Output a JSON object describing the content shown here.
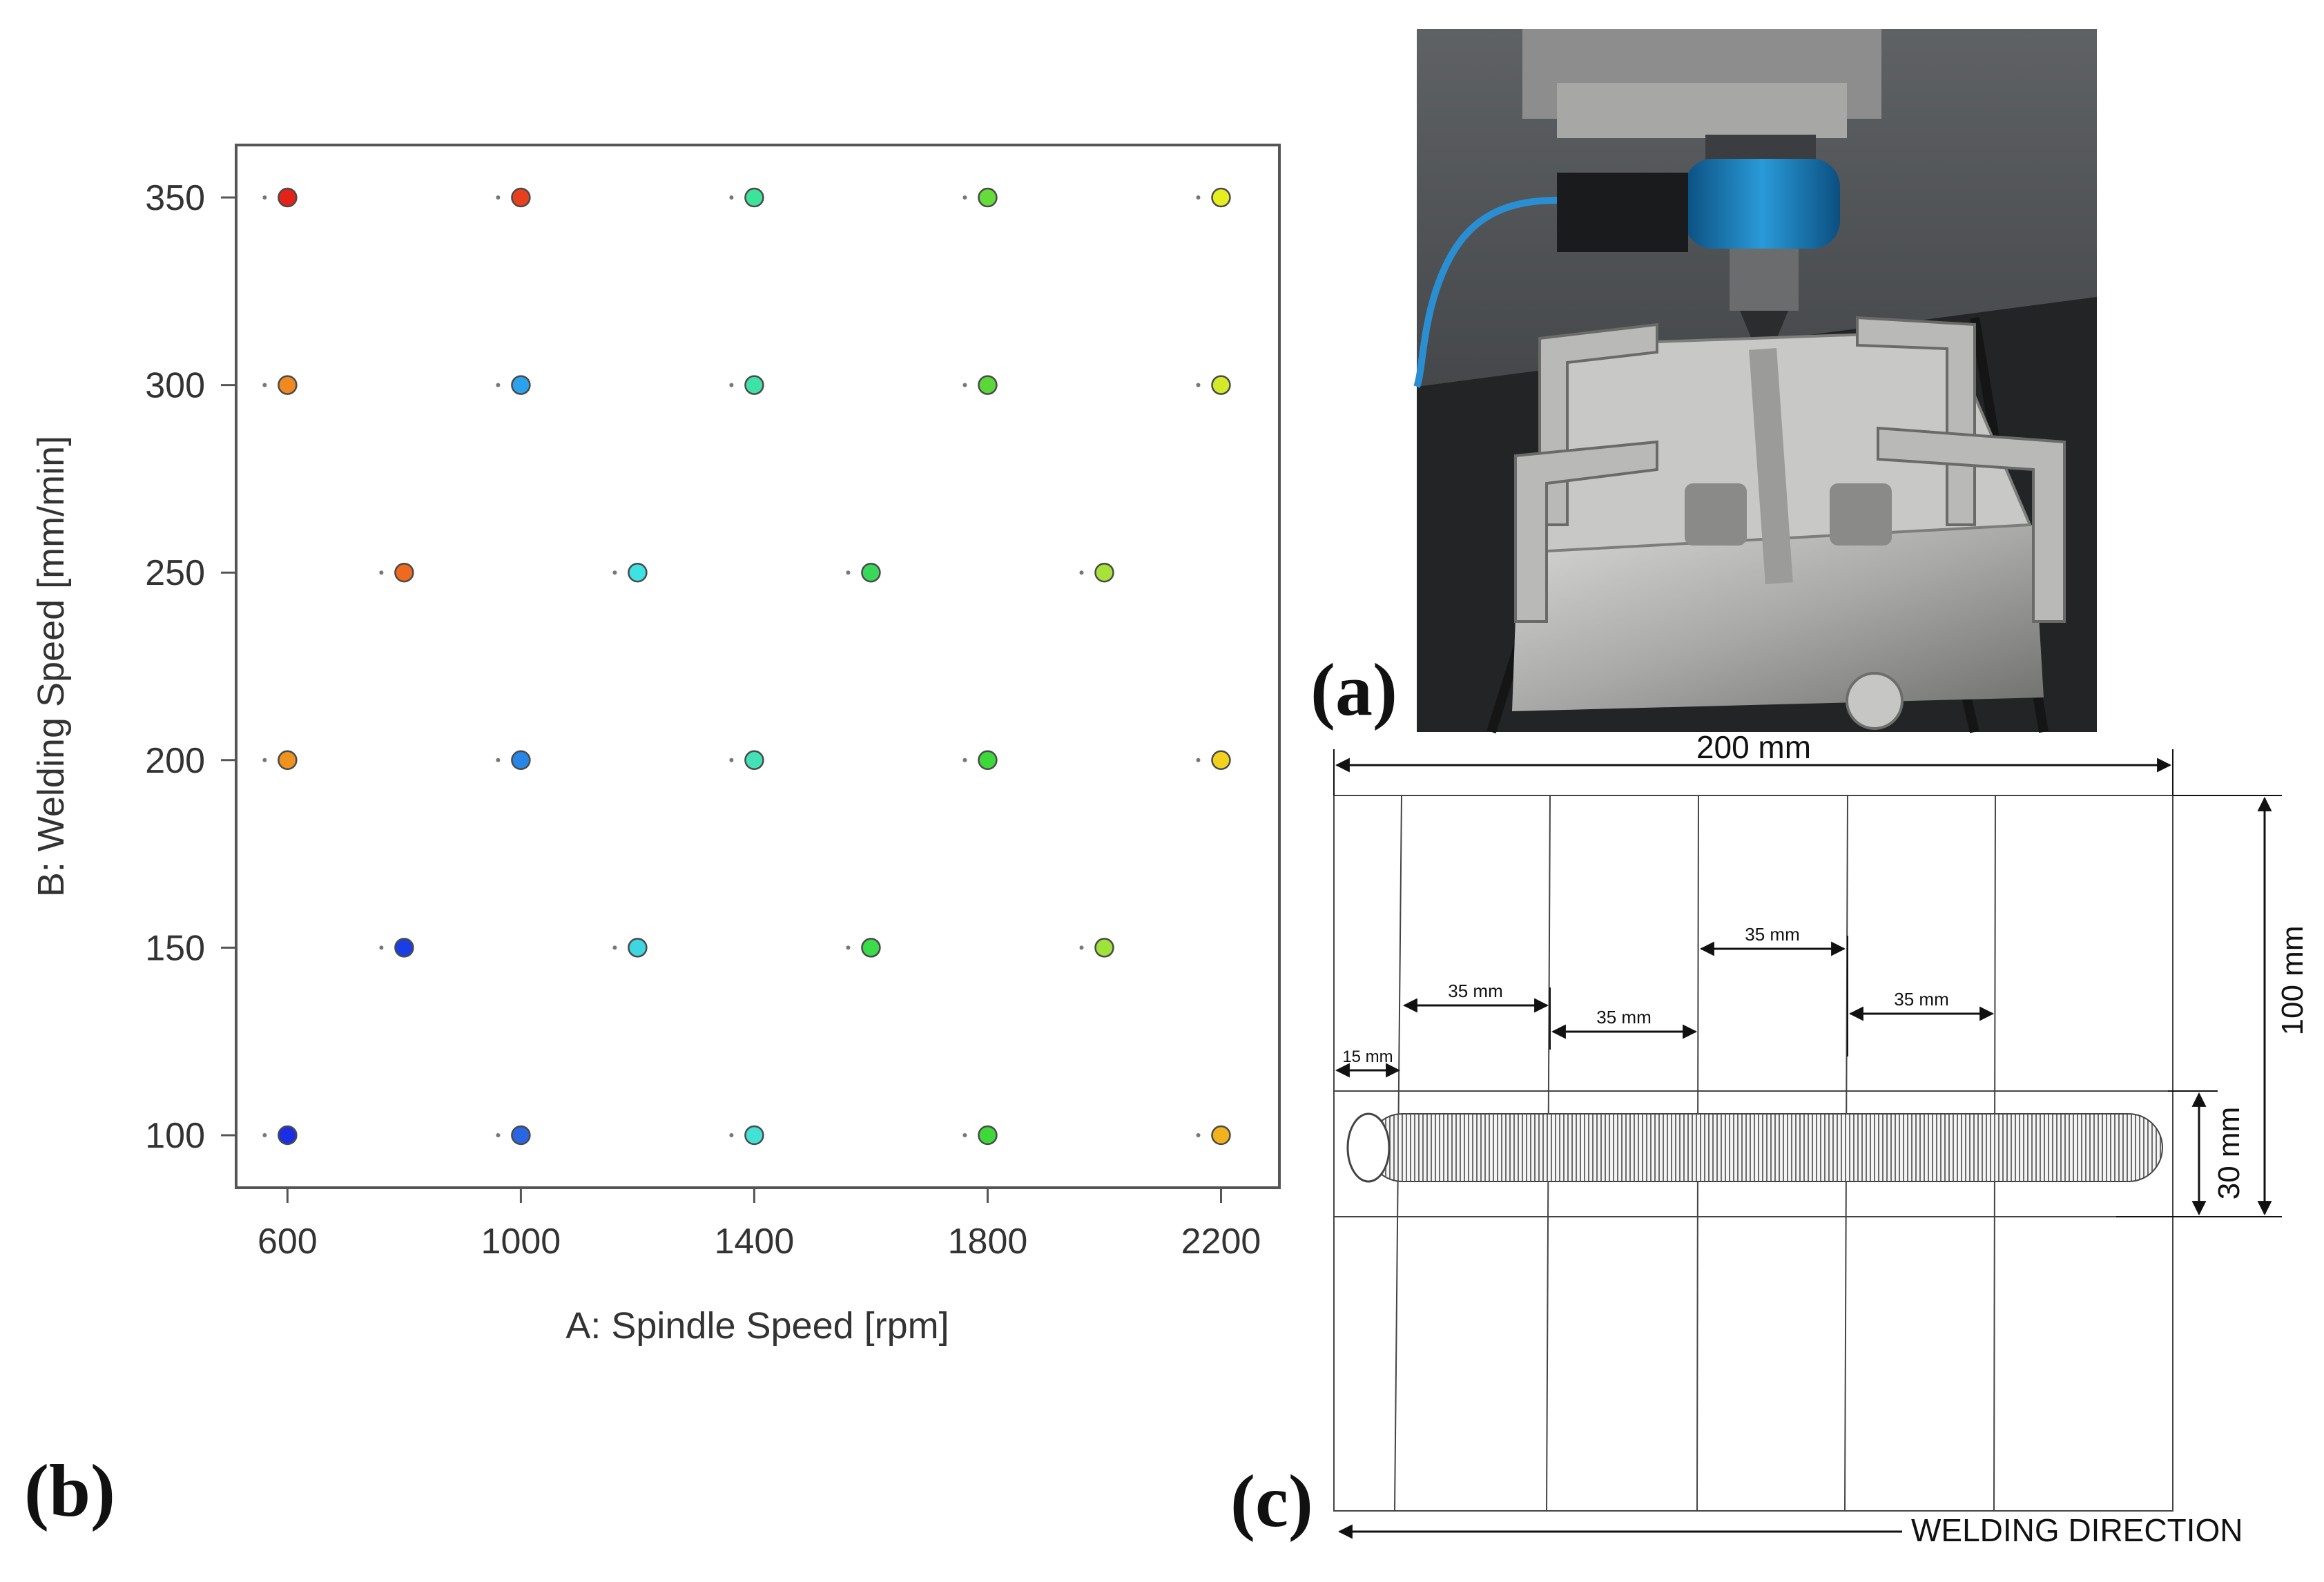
{
  "panels": {
    "a": "(a)",
    "b": "(b)",
    "c": "(c)"
  },
  "chart_data": {
    "type": "scatter",
    "xlabel": "A: Spindle Speed  [rpm]",
    "ylabel": "B: Welding Speed [mm/min]",
    "xticks": [
      "600",
      "1000",
      "1400",
      "1800",
      "2200"
    ],
    "yticks": [
      "100",
      "150",
      "200",
      "250",
      "300",
      "350"
    ],
    "xlim": [
      512,
      2300
    ],
    "ylim": [
      86,
      364
    ],
    "grid": false,
    "points": [
      {
        "x": 600,
        "y": 350,
        "color": "#e52218"
      },
      {
        "x": 1000,
        "y": 350,
        "color": "#e8401c"
      },
      {
        "x": 1400,
        "y": 350,
        "color": "#3ee39a"
      },
      {
        "x": 1800,
        "y": 350,
        "color": "#66dc3a"
      },
      {
        "x": 2200,
        "y": 350,
        "color": "#e6ee22"
      },
      {
        "x": 600,
        "y": 300,
        "color": "#f08a1e"
      },
      {
        "x": 1000,
        "y": 300,
        "color": "#2aa2ee"
      },
      {
        "x": 1400,
        "y": 300,
        "color": "#3ee2a8"
      },
      {
        "x": 1800,
        "y": 300,
        "color": "#5ad83a"
      },
      {
        "x": 2200,
        "y": 300,
        "color": "#d2ea2a"
      },
      {
        "x": 800,
        "y": 250,
        "color": "#ee6a1e"
      },
      {
        "x": 1200,
        "y": 250,
        "color": "#3ee2e2"
      },
      {
        "x": 1600,
        "y": 250,
        "color": "#3ad85a"
      },
      {
        "x": 2000,
        "y": 250,
        "color": "#a6e23a"
      },
      {
        "x": 600,
        "y": 200,
        "color": "#f0921e"
      },
      {
        "x": 1000,
        "y": 200,
        "color": "#2a86e6"
      },
      {
        "x": 1400,
        "y": 200,
        "color": "#42e2b6"
      },
      {
        "x": 1800,
        "y": 200,
        "color": "#3ed83a"
      },
      {
        "x": 2200,
        "y": 200,
        "color": "#f2d21e"
      },
      {
        "x": 800,
        "y": 150,
        "color": "#1a3ee6"
      },
      {
        "x": 1200,
        "y": 150,
        "color": "#3ed6e2"
      },
      {
        "x": 1600,
        "y": 150,
        "color": "#3adc4a"
      },
      {
        "x": 2000,
        "y": 150,
        "color": "#9ee23a"
      },
      {
        "x": 600,
        "y": 100,
        "color": "#1a2ee6"
      },
      {
        "x": 1000,
        "y": 100,
        "color": "#2a66e2"
      },
      {
        "x": 1400,
        "y": 100,
        "color": "#42e2d6"
      },
      {
        "x": 1800,
        "y": 100,
        "color": "#3ed83a"
      },
      {
        "x": 2200,
        "y": 100,
        "color": "#f2b21e"
      }
    ]
  },
  "photo": {
    "description_icon": "fsw-machine-photo"
  },
  "drawing": {
    "overall_length": "200 mm",
    "height": "100 mm",
    "weld_width": "30 mm",
    "edge_offset": "15 mm",
    "spacing_1": "35 mm",
    "spacing_2": "35 mm",
    "spacing_3": "35 mm",
    "spacing_4": "35 mm",
    "direction": "WELDING DIRECTION"
  }
}
